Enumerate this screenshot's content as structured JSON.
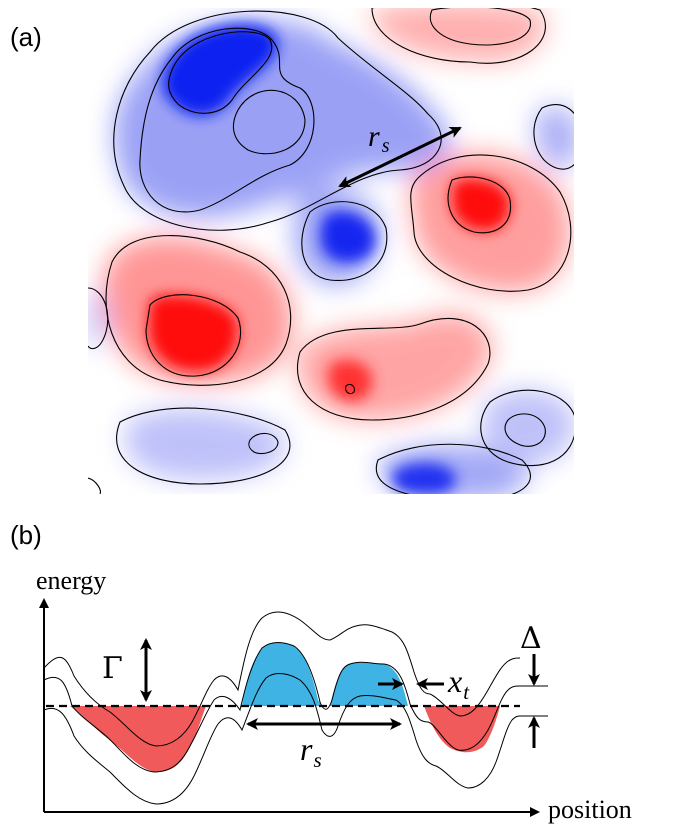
{
  "panel_a": {
    "label": "(a)",
    "rs_symbol": "r",
    "rs_subscript": "s"
  },
  "panel_b": {
    "label": "(b)",
    "y_axis_label": "energy",
    "x_axis_label": "position",
    "gamma_symbol": "Γ",
    "delta_symbol": "Δ",
    "rs_symbol": "r",
    "rs_subscript": "s",
    "xt_symbol": "x",
    "xt_subscript": "t"
  },
  "colors": {
    "positive": "#ff0000",
    "negative": "#0000ff",
    "filled_above": "#3fb3e3",
    "filled_below": "#f05a5a"
  }
}
